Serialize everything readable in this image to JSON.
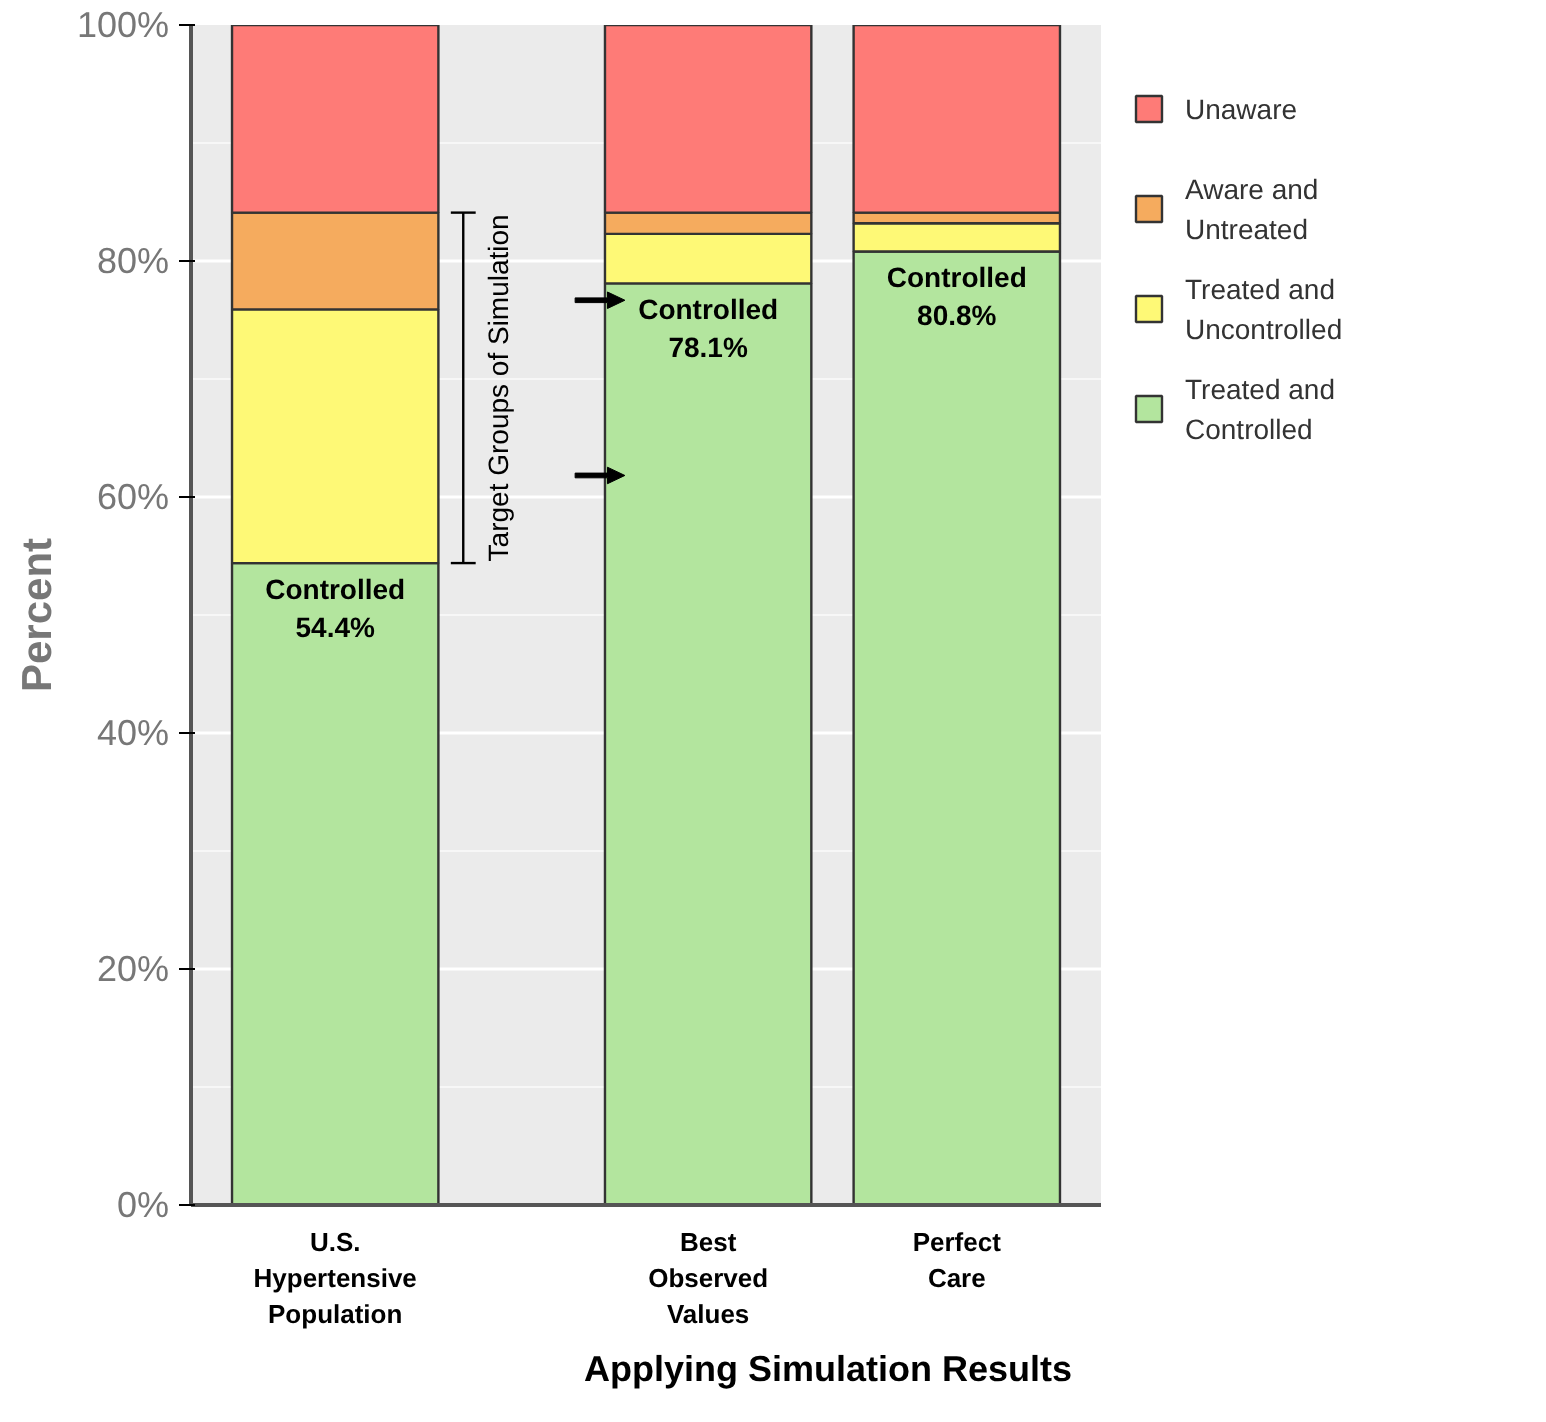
{
  "chart_data": {
    "type": "bar",
    "stacked": true,
    "ylabel": "Percent",
    "xlabel": "Applying Simulation Results",
    "categories": [
      "U.S.\nHypertensive\nPopulation",
      "Best\nObserved\nValues",
      "Perfect\nCare"
    ],
    "series": [
      {
        "name": "Treated and\nControlled",
        "color": "#b3e59e",
        "values": [
          54.4,
          78.1,
          80.8
        ],
        "value_labels": [
          "Controlled\n54.4%",
          "Controlled\n78.1%",
          "Controlled\n80.8%"
        ]
      },
      {
        "name": "Treated and\nUncontrolled",
        "color": "#fef976",
        "values": [
          21.5,
          4.2,
          2.4
        ]
      },
      {
        "name": "Aware and\nUntreated",
        "color": "#f5ab5e",
        "values": [
          8.2,
          1.8,
          0.9
        ]
      },
      {
        "name": "Unaware",
        "color": "#fe7b77",
        "values": [
          15.9,
          15.9,
          15.9
        ]
      }
    ],
    "ylim": [
      0,
      100
    ],
    "yticks": [
      {
        "value": 0,
        "label": "0%"
      },
      {
        "value": 10,
        "label": null
      },
      {
        "value": 20,
        "label": "20%"
      },
      {
        "value": 30,
        "label": null
      },
      {
        "value": 40,
        "label": "40%"
      },
      {
        "value": 50,
        "label": null
      },
      {
        "value": 60,
        "label": "60%"
      },
      {
        "value": 70,
        "label": null
      },
      {
        "value": 80,
        "label": "80%"
      },
      {
        "value": 90,
        "label": null
      },
      {
        "value": 100,
        "label": "100%"
      }
    ],
    "grid": "y",
    "legend": "right",
    "annotations": [
      "Target Groups of Simulation"
    ]
  }
}
